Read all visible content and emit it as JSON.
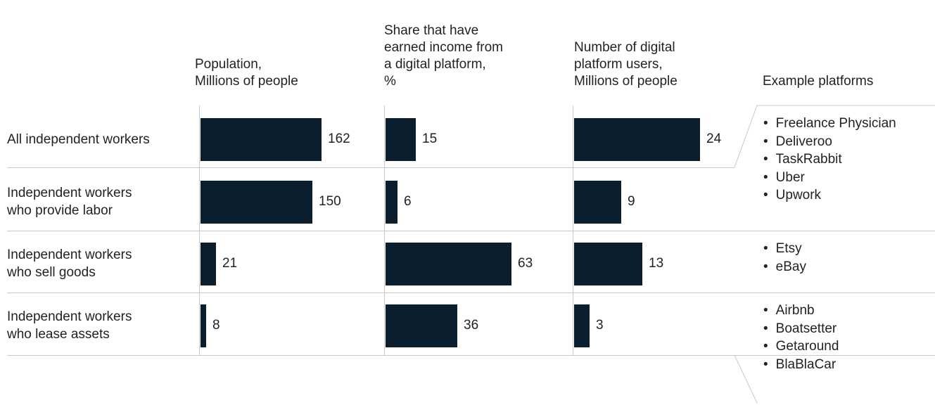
{
  "chart_data": {
    "type": "bar",
    "categories": [
      [
        "All independent workers"
      ],
      [
        "Independent workers",
        "who provide labor"
      ],
      [
        "Independent workers",
        "who sell goods"
      ],
      [
        "Independent workers",
        "who lease assets"
      ]
    ],
    "series": [
      {
        "header": [
          "Population,",
          "Millions of people"
        ],
        "values": [
          162,
          150,
          21,
          8
        ],
        "max": 162
      },
      {
        "header": [
          "Share that have",
          "earned income from",
          "a digital platform,",
          "%"
        ],
        "values": [
          15,
          6,
          63,
          36
        ],
        "max": 63
      },
      {
        "header": [
          "Number of digital",
          "platform users,",
          "Millions of people"
        ],
        "values": [
          24,
          9,
          13,
          3
        ],
        "max": 24
      }
    ],
    "platforms_header": "Example platforms",
    "platform_groups": [
      [
        "Freelance Physician",
        "Deliveroo",
        "TaskRabbit",
        "Uber",
        "Upwork"
      ],
      [
        "Etsy",
        "eBay"
      ],
      [
        "Airbnb",
        "Boatsetter",
        "Getaround",
        "BlaBlaCar"
      ]
    ],
    "bar_color": "#0b1e2d"
  }
}
